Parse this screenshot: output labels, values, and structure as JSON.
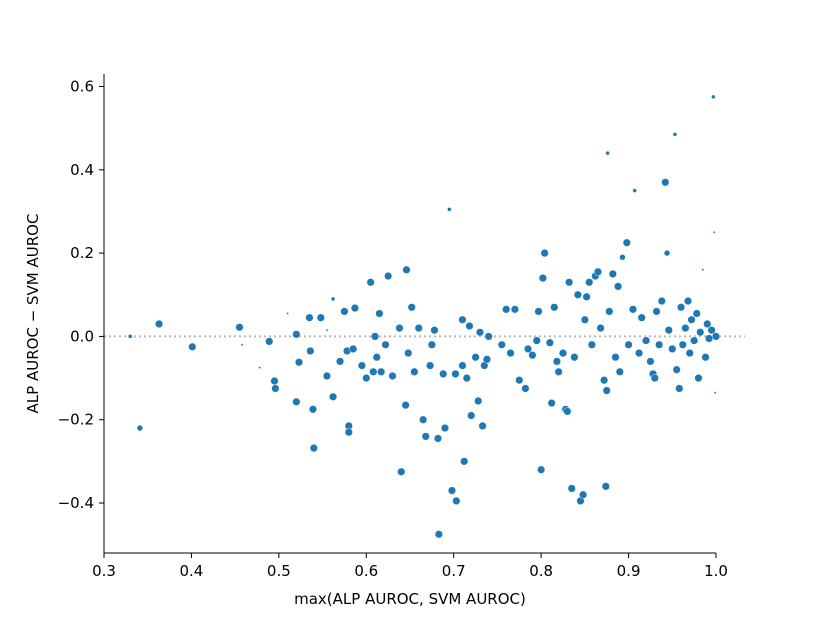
{
  "chart_data": {
    "type": "scatter",
    "title": "",
    "xlabel": "max(ALP AUROC, SVM AUROC)",
    "ylabel": "ALP AUROC − SVM AUROC",
    "xlim": [
      0.3,
      1.0
    ],
    "ylim": [
      -0.52,
      0.63
    ],
    "xticks": [
      0.3,
      0.4,
      0.5,
      0.6,
      0.7,
      0.8,
      0.9,
      1.0
    ],
    "xtick_labels": [
      "0.3",
      "0.4",
      "0.5",
      "0.6",
      "0.7",
      "0.8",
      "0.9",
      "1.0"
    ],
    "yticks": [
      -0.4,
      -0.2,
      0.0,
      0.2,
      0.4,
      0.6
    ],
    "ytick_labels": [
      "−0.4",
      "−0.2",
      "0.0",
      "0.2",
      "0.4",
      "0.6"
    ],
    "reference_line": {
      "y": 0.0,
      "style": "dotted",
      "color": "#b8b8b8"
    },
    "marker_color": "#1f77b4",
    "grid": false,
    "spines": [
      "left",
      "bottom"
    ],
    "points": [
      [
        0.33,
        0.0,
        2
      ],
      [
        0.341,
        -0.22,
        3
      ],
      [
        0.363,
        0.03,
        4
      ],
      [
        0.401,
        -0.025,
        4
      ],
      [
        0.455,
        0.022,
        4
      ],
      [
        0.458,
        -0.02,
        1
      ],
      [
        0.478,
        -0.075,
        1
      ],
      [
        0.489,
        -0.012,
        4
      ],
      [
        0.495,
        -0.107,
        4
      ],
      [
        0.496,
        -0.125,
        4
      ],
      [
        0.51,
        0.055,
        1
      ],
      [
        0.52,
        0.005,
        4
      ],
      [
        0.52,
        -0.157,
        4
      ],
      [
        0.523,
        -0.062,
        4
      ],
      [
        0.535,
        0.045,
        4
      ],
      [
        0.536,
        -0.035,
        4
      ],
      [
        0.539,
        -0.175,
        4
      ],
      [
        0.54,
        -0.268,
        4
      ],
      [
        0.548,
        0.045,
        4
      ],
      [
        0.555,
        -0.095,
        4
      ],
      [
        0.555,
        0.015,
        1
      ],
      [
        0.562,
        0.09,
        2
      ],
      [
        0.562,
        -0.145,
        4
      ],
      [
        0.57,
        -0.06,
        4
      ],
      [
        0.575,
        0.06,
        4
      ],
      [
        0.578,
        -0.035,
        4
      ],
      [
        0.58,
        -0.215,
        4
      ],
      [
        0.58,
        -0.23,
        4
      ],
      [
        0.585,
        -0.03,
        4
      ],
      [
        0.587,
        0.068,
        4
      ],
      [
        0.595,
        -0.07,
        4
      ],
      [
        0.6,
        -0.1,
        4
      ],
      [
        0.605,
        0.13,
        4
      ],
      [
        0.608,
        -0.085,
        4
      ],
      [
        0.61,
        0.0,
        4
      ],
      [
        0.612,
        -0.05,
        4
      ],
      [
        0.615,
        0.055,
        4
      ],
      [
        0.617,
        -0.085,
        4
      ],
      [
        0.622,
        -0.02,
        4
      ],
      [
        0.625,
        0.145,
        4
      ],
      [
        0.63,
        -0.095,
        4
      ],
      [
        0.638,
        0.02,
        4
      ],
      [
        0.64,
        -0.325,
        4
      ],
      [
        0.645,
        -0.165,
        4
      ],
      [
        0.646,
        0.16,
        4
      ],
      [
        0.648,
        -0.04,
        4
      ],
      [
        0.652,
        0.07,
        4
      ],
      [
        0.655,
        -0.085,
        4
      ],
      [
        0.66,
        0.02,
        4
      ],
      [
        0.665,
        -0.2,
        4
      ],
      [
        0.668,
        -0.24,
        4
      ],
      [
        0.673,
        -0.07,
        4
      ],
      [
        0.675,
        -0.02,
        4
      ],
      [
        0.678,
        0.015,
        4
      ],
      [
        0.682,
        -0.245,
        4
      ],
      [
        0.683,
        -0.475,
        4
      ],
      [
        0.688,
        -0.09,
        4
      ],
      [
        0.69,
        -0.22,
        4
      ],
      [
        0.695,
        0.305,
        2
      ],
      [
        0.698,
        -0.37,
        4
      ],
      [
        0.702,
        -0.09,
        4
      ],
      [
        0.703,
        -0.395,
        4
      ],
      [
        0.71,
        -0.07,
        4
      ],
      [
        0.71,
        0.04,
        4
      ],
      [
        0.712,
        -0.3,
        4
      ],
      [
        0.715,
        -0.1,
        4
      ],
      [
        0.718,
        0.025,
        4
      ],
      [
        0.72,
        -0.19,
        4
      ],
      [
        0.725,
        -0.05,
        4
      ],
      [
        0.728,
        -0.155,
        4
      ],
      [
        0.73,
        0.01,
        4
      ],
      [
        0.733,
        -0.215,
        4
      ],
      [
        0.735,
        -0.07,
        4
      ],
      [
        0.738,
        -0.055,
        4
      ],
      [
        0.74,
        0.0,
        4
      ],
      [
        0.755,
        -0.02,
        4
      ],
      [
        0.76,
        0.065,
        4
      ],
      [
        0.765,
        -0.04,
        4
      ],
      [
        0.77,
        0.065,
        4
      ],
      [
        0.775,
        -0.105,
        4
      ],
      [
        0.782,
        -0.125,
        4
      ],
      [
        0.785,
        -0.03,
        4
      ],
      [
        0.79,
        -0.045,
        4
      ],
      [
        0.795,
        -0.01,
        4
      ],
      [
        0.797,
        0.06,
        4
      ],
      [
        0.8,
        -0.32,
        4
      ],
      [
        0.802,
        0.14,
        4
      ],
      [
        0.804,
        0.2,
        4
      ],
      [
        0.81,
        -0.015,
        4
      ],
      [
        0.812,
        -0.16,
        4
      ],
      [
        0.815,
        0.07,
        4
      ],
      [
        0.818,
        -0.06,
        4
      ],
      [
        0.82,
        -0.085,
        4
      ],
      [
        0.825,
        -0.04,
        4
      ],
      [
        0.828,
        -0.175,
        4
      ],
      [
        0.83,
        -0.18,
        4
      ],
      [
        0.832,
        0.13,
        4
      ],
      [
        0.835,
        -0.365,
        4
      ],
      [
        0.838,
        -0.05,
        4
      ],
      [
        0.842,
        0.1,
        4
      ],
      [
        0.845,
        -0.395,
        4
      ],
      [
        0.848,
        -0.38,
        4
      ],
      [
        0.85,
        0.04,
        4
      ],
      [
        0.852,
        0.095,
        4
      ],
      [
        0.855,
        0.13,
        4
      ],
      [
        0.858,
        -0.02,
        4
      ],
      [
        0.862,
        0.145,
        4
      ],
      [
        0.865,
        0.155,
        4
      ],
      [
        0.868,
        0.02,
        4
      ],
      [
        0.872,
        -0.105,
        4
      ],
      [
        0.874,
        -0.36,
        4
      ],
      [
        0.875,
        -0.13,
        4
      ],
      [
        0.876,
        0.44,
        2
      ],
      [
        0.878,
        0.06,
        4
      ],
      [
        0.882,
        0.15,
        4
      ],
      [
        0.885,
        -0.05,
        4
      ],
      [
        0.888,
        0.12,
        4
      ],
      [
        0.89,
        -0.085,
        4
      ],
      [
        0.893,
        0.19,
        3
      ],
      [
        0.898,
        0.225,
        4
      ],
      [
        0.9,
        -0.02,
        4
      ],
      [
        0.905,
        0.065,
        4
      ],
      [
        0.907,
        0.35,
        2
      ],
      [
        0.912,
        -0.04,
        4
      ],
      [
        0.915,
        0.045,
        4
      ],
      [
        0.92,
        -0.01,
        4
      ],
      [
        0.925,
        -0.06,
        4
      ],
      [
        0.928,
        -0.09,
        4
      ],
      [
        0.93,
        -0.1,
        4
      ],
      [
        0.932,
        0.06,
        4
      ],
      [
        0.935,
        -0.02,
        4
      ],
      [
        0.938,
        0.085,
        4
      ],
      [
        0.942,
        0.37,
        4
      ],
      [
        0.944,
        0.2,
        3
      ],
      [
        0.946,
        0.015,
        4
      ],
      [
        0.95,
        -0.03,
        4
      ],
      [
        0.953,
        0.485,
        2
      ],
      [
        0.955,
        -0.08,
        4
      ],
      [
        0.958,
        -0.125,
        4
      ],
      [
        0.96,
        0.07,
        4
      ],
      [
        0.962,
        -0.02,
        4
      ],
      [
        0.965,
        0.02,
        4
      ],
      [
        0.968,
        0.085,
        4
      ],
      [
        0.97,
        -0.04,
        4
      ],
      [
        0.972,
        0.04,
        4
      ],
      [
        0.975,
        -0.01,
        4
      ],
      [
        0.978,
        0.055,
        4
      ],
      [
        0.98,
        -0.1,
        4
      ],
      [
        0.982,
        0.01,
        4
      ],
      [
        0.985,
        0.16,
        1
      ],
      [
        0.988,
        -0.05,
        4
      ],
      [
        0.99,
        0.03,
        4
      ],
      [
        0.992,
        -0.005,
        4
      ],
      [
        0.995,
        0.015,
        4
      ],
      [
        0.997,
        0.575,
        2
      ],
      [
        0.998,
        0.25,
        1
      ],
      [
        0.999,
        -0.135,
        1
      ],
      [
        1.0,
        0.0,
        4
      ]
    ]
  }
}
